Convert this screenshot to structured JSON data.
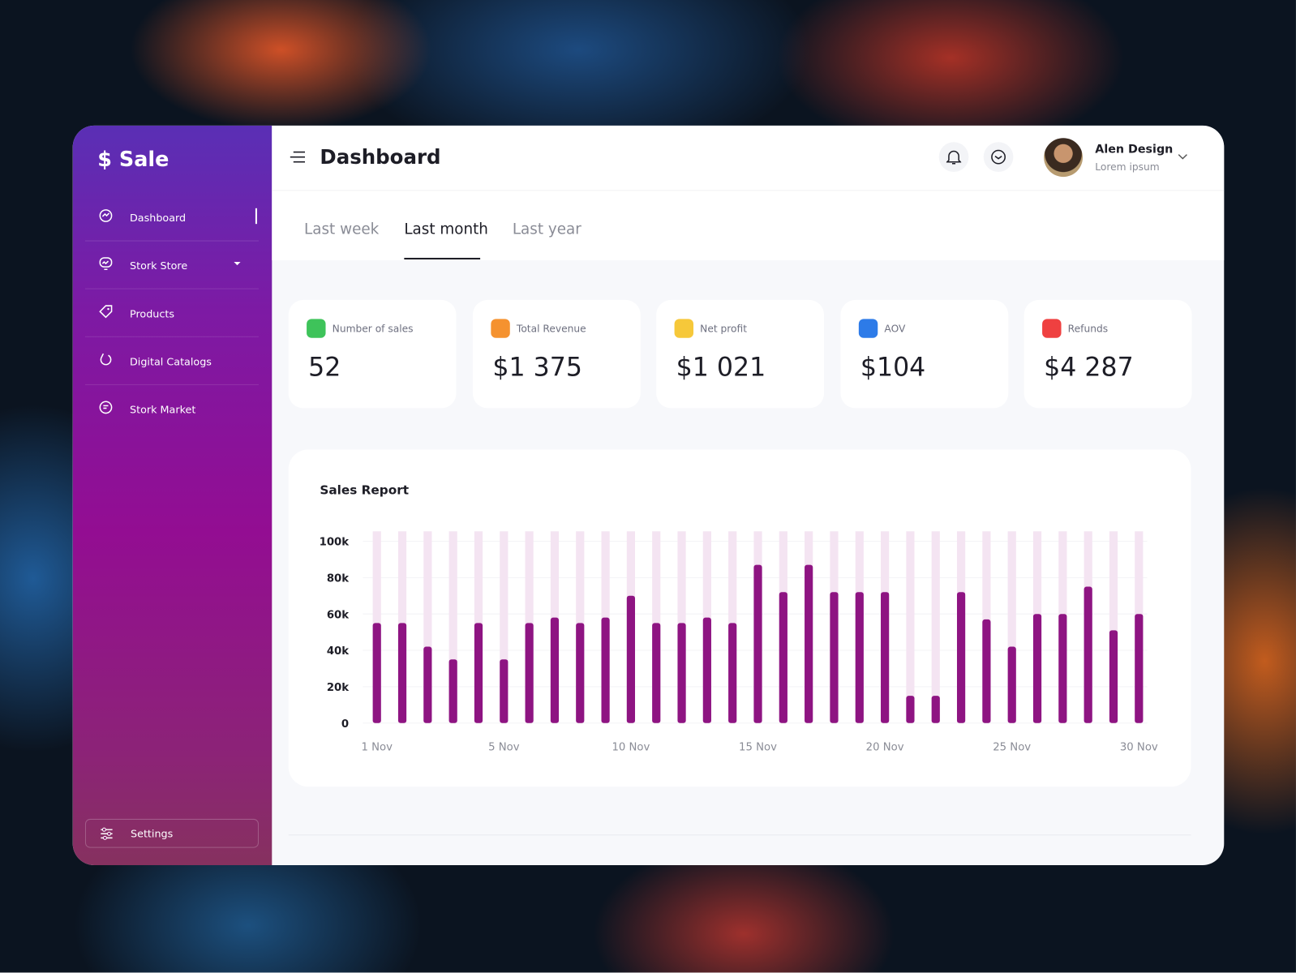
{
  "brand": "$ Sale",
  "nav": [
    "Dashboard",
    "Stork Store",
    "Products",
    "Digital Catalogs",
    "Stork Market"
  ],
  "settings": "Settings",
  "header": {
    "title": "Dashboard",
    "user_name": "Alen Design",
    "user_subtitle": "Lorem ipsum"
  },
  "tabs": [
    "Last week",
    "Last month",
    "Last year"
  ],
  "stats": [
    {
      "label": "Number of sales",
      "value": "52"
    },
    {
      "label": "Total Revenue",
      "value": "$1 375"
    },
    {
      "label": "Net profit",
      "value": "$1 021"
    },
    {
      "label": "AOV",
      "value": "$104"
    },
    {
      "label": "Refunds",
      "value": "$4 287"
    }
  ],
  "chart_data": {
    "type": "bar",
    "title": "Sales Report",
    "categories": [
      "1 Nov",
      null,
      null,
      null,
      null,
      "5 Nov",
      null,
      null,
      null,
      null,
      "10 Nov",
      null,
      null,
      null,
      null,
      "15 Nov",
      null,
      null,
      null,
      null,
      "20 Nov",
      null,
      null,
      null,
      null,
      "25 Nov",
      null,
      null,
      null,
      null,
      "30 Nov"
    ],
    "values": [
      55000,
      55000,
      42000,
      35000,
      55000,
      35000,
      55000,
      58000,
      55000,
      58000,
      70000,
      55000,
      55000,
      58000,
      55000,
      87000,
      72000,
      87000,
      72000,
      72000,
      72000,
      15000,
      15000,
      72000,
      57000,
      42000,
      60000,
      60000,
      75000,
      51000,
      60000
    ],
    "color": "#8e1482",
    "ylim": [
      0,
      100000
    ],
    "yticks": [
      0,
      {
        "value": 20000,
        "label": "20k"
      },
      {
        "value": 40000,
        "label": "40k"
      },
      {
        "value": 60000,
        "label": "60k"
      },
      {
        "value": 80000,
        "label": "80k"
      },
      {
        "value": 100000,
        "label": "100k"
      }
    ],
    "grid": true
  }
}
